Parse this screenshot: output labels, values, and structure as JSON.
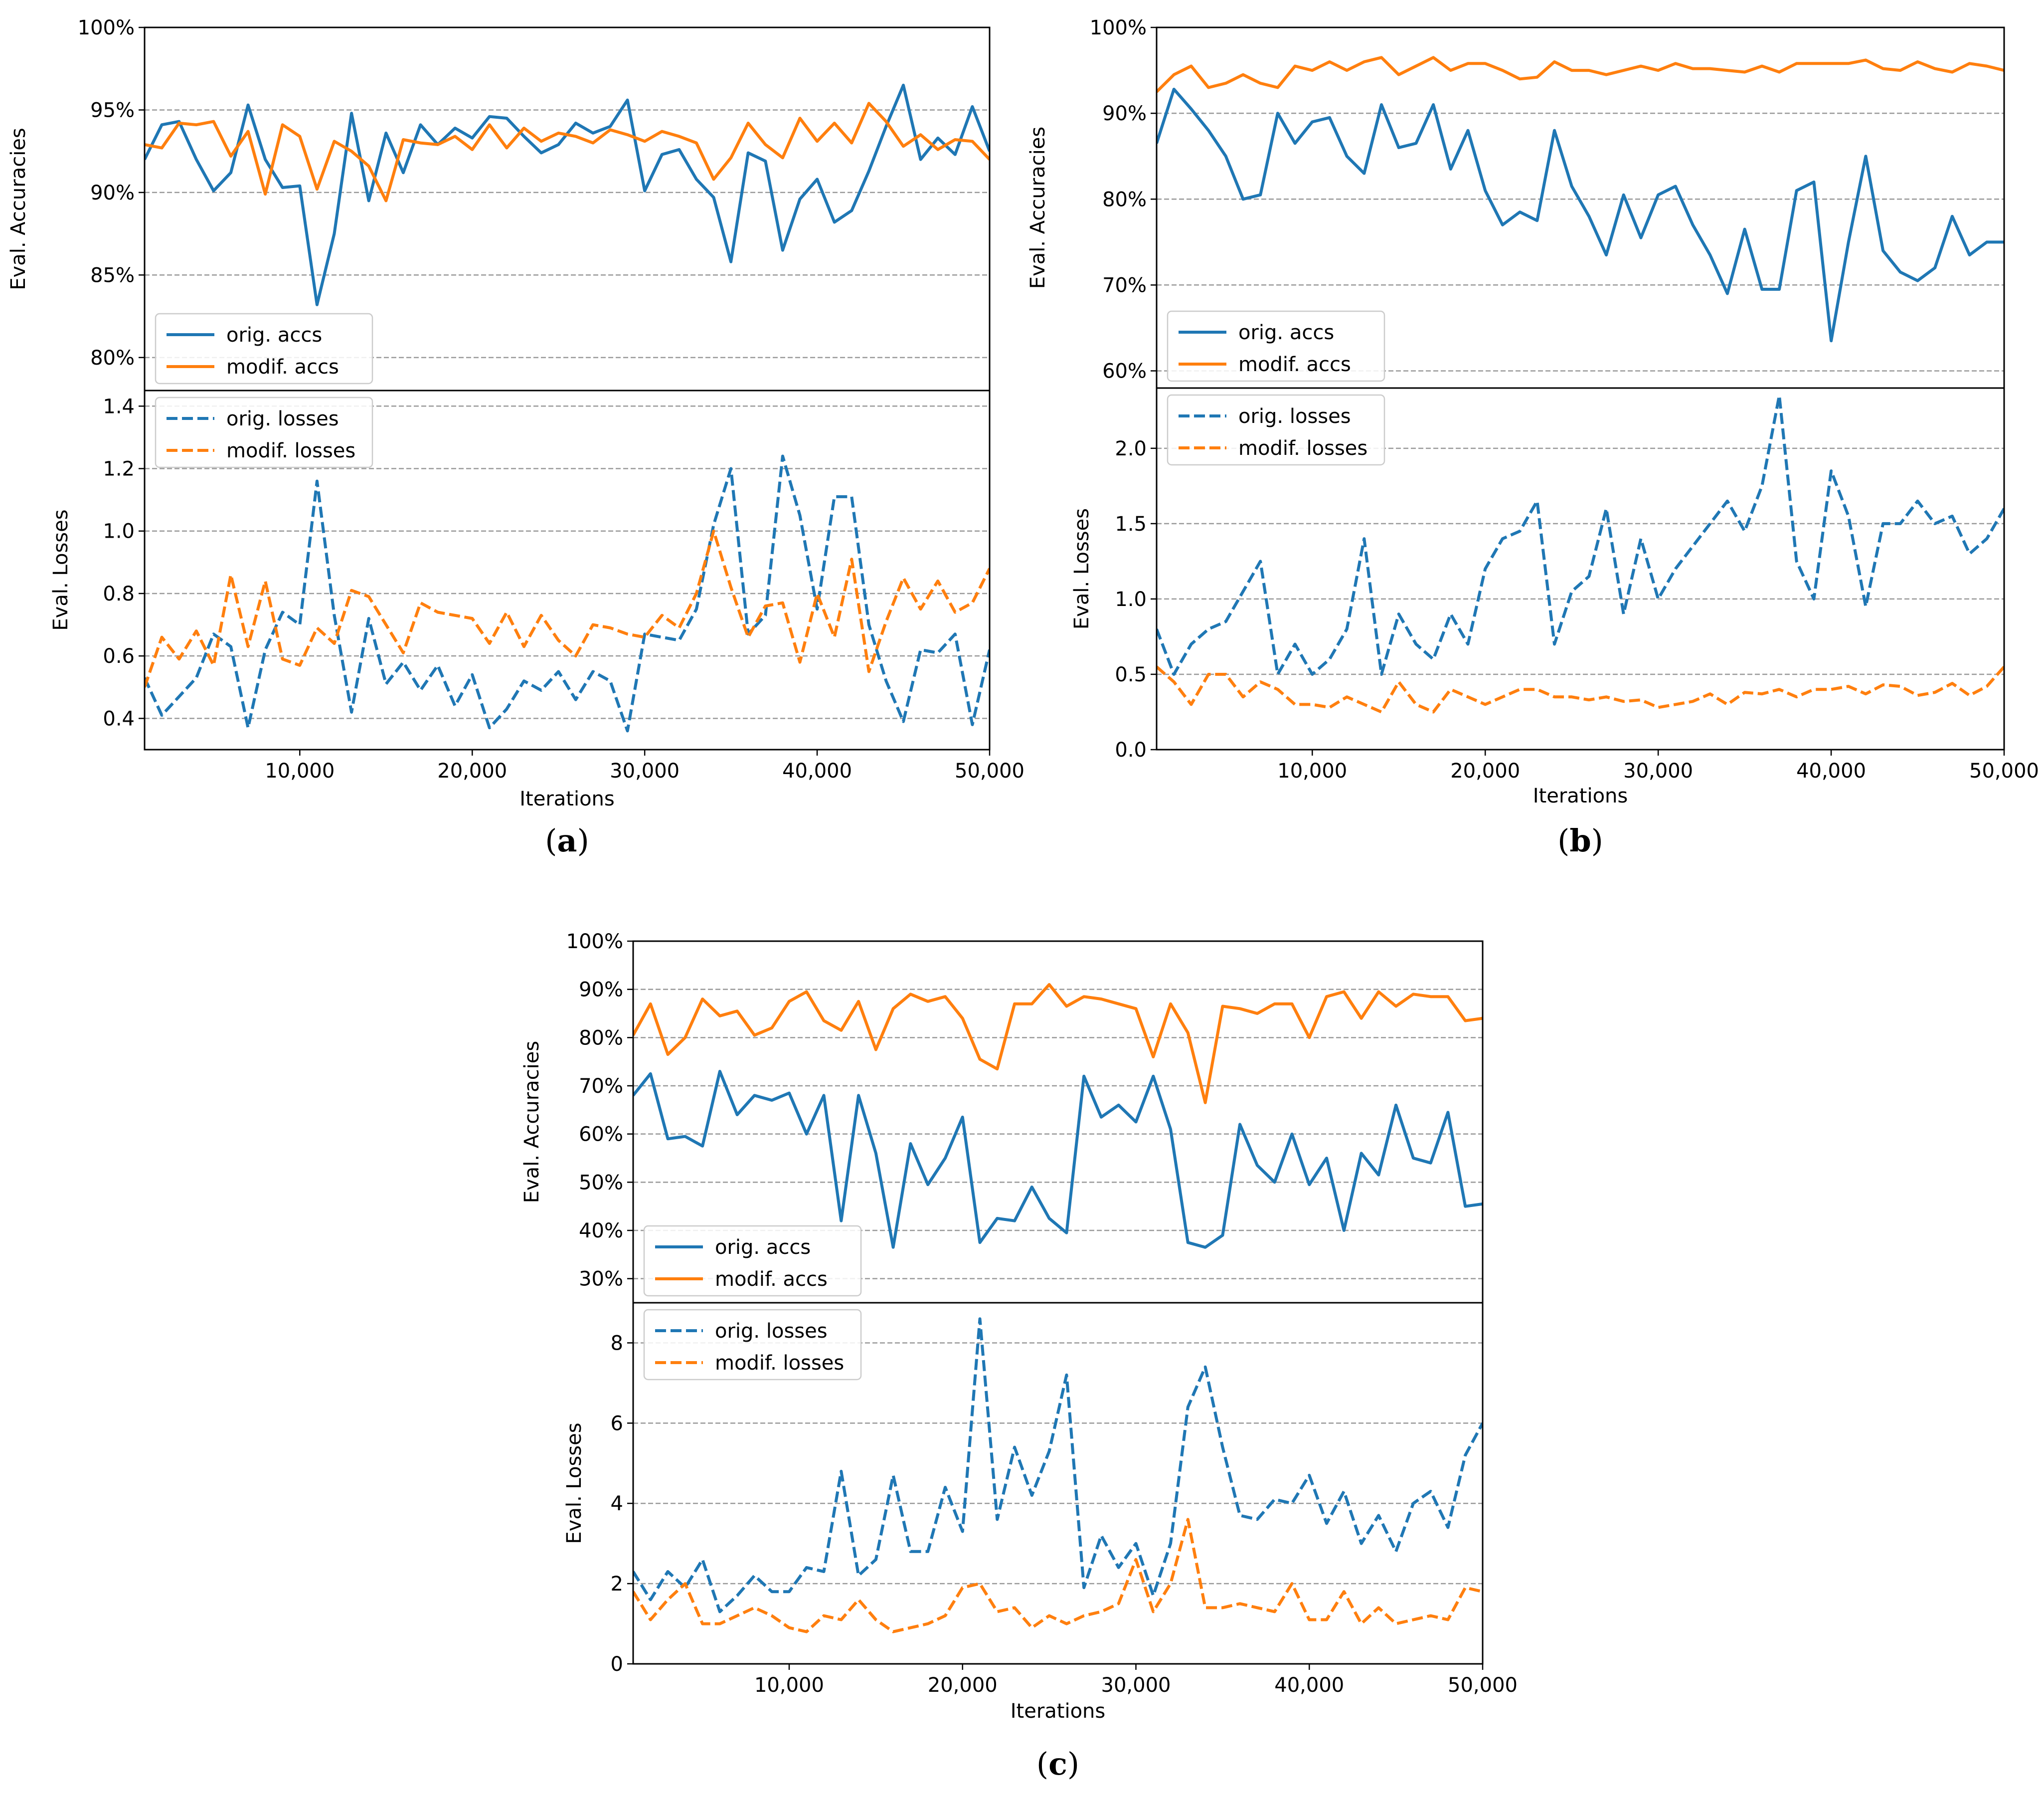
{
  "chart_data": [
    {
      "caption": "(a)",
      "caption_letter": "a",
      "xlabel": "Iterations",
      "xlim": [
        1000,
        50000
      ],
      "xticks": [
        10000,
        20000,
        30000,
        40000,
        50000
      ],
      "xtick_labels": [
        "10,000",
        "20,000",
        "30,000",
        "40,000",
        "50,000"
      ],
      "top": {
        "type": "line",
        "ylabel": "Eval. Accuracies",
        "ylim": [
          78,
          100
        ],
        "yticks": [
          80,
          85,
          90,
          95,
          100
        ],
        "ytick_labels": [
          "80%",
          "85%",
          "90%",
          "95%",
          "100%"
        ],
        "legend_position": "bottom-left",
        "series": [
          {
            "name": "orig. accs",
            "color": "#1f77b4",
            "dash": false,
            "values": [
              92.0,
              94.1,
              94.3,
              92.0,
              90.1,
              91.2,
              95.3,
              92.0,
              90.3,
              90.4,
              83.2,
              87.5,
              94.8,
              89.5,
              93.6,
              91.2,
              94.1,
              92.9,
              93.9,
              93.3,
              94.6,
              94.5,
              93.4,
              92.4,
              92.9,
              94.2,
              93.6,
              94.0,
              95.6,
              90.1,
              92.3,
              92.6,
              90.8,
              89.7,
              85.8,
              92.4,
              91.9,
              86.5,
              89.6,
              90.8,
              88.2,
              88.9,
              91.3,
              94.0,
              96.5,
              92.0,
              93.3,
              92.3,
              95.2,
              92.5
            ]
          },
          {
            "name": "modif. accs",
            "color": "#ff7f0e",
            "dash": false,
            "values": [
              92.9,
              92.7,
              94.2,
              94.1,
              94.3,
              92.2,
              93.7,
              89.9,
              94.1,
              93.4,
              90.2,
              93.1,
              92.5,
              91.6,
              89.5,
              93.2,
              93.0,
              92.9,
              93.4,
              92.6,
              94.1,
              92.7,
              93.9,
              93.1,
              93.6,
              93.4,
              93.0,
              93.8,
              93.5,
              93.1,
              93.7,
              93.4,
              93.0,
              90.8,
              92.1,
              94.2,
              92.9,
              92.1,
              94.5,
              93.1,
              94.2,
              93.0,
              95.4,
              94.3,
              92.8,
              93.5,
              92.6,
              93.2,
              93.1,
              92.0
            ]
          }
        ]
      },
      "bottom": {
        "type": "line",
        "ylabel": "Eval. Losses",
        "ylim": [
          0.3,
          1.45
        ],
        "yticks": [
          0.4,
          0.6,
          0.8,
          1.0,
          1.2,
          1.4
        ],
        "ytick_labels": [
          "0.4",
          "0.6",
          "0.8",
          "1.0",
          "1.2",
          "1.4"
        ],
        "legend_position": "top-left",
        "series": [
          {
            "name": "orig. losses",
            "color": "#1f77b4",
            "dash": true,
            "values": [
              0.53,
              0.41,
              0.47,
              0.53,
              0.67,
              0.63,
              0.37,
              0.62,
              0.74,
              0.7,
              1.16,
              0.73,
              0.42,
              0.72,
              0.51,
              0.58,
              0.49,
              0.57,
              0.44,
              0.54,
              0.37,
              0.43,
              0.52,
              0.49,
              0.55,
              0.46,
              0.55,
              0.52,
              0.36,
              0.67,
              0.66,
              0.65,
              0.75,
              1.02,
              1.2,
              0.67,
              0.73,
              1.24,
              1.05,
              0.75,
              1.11,
              1.11,
              0.7,
              0.52,
              0.39,
              0.62,
              0.61,
              0.67,
              0.38,
              0.62
            ]
          },
          {
            "name": "modif. losses",
            "color": "#ff7f0e",
            "dash": true,
            "values": [
              0.5,
              0.66,
              0.59,
              0.68,
              0.57,
              0.86,
              0.63,
              0.84,
              0.59,
              0.57,
              0.69,
              0.64,
              0.81,
              0.79,
              0.7,
              0.61,
              0.77,
              0.74,
              0.73,
              0.72,
              0.64,
              0.74,
              0.63,
              0.73,
              0.65,
              0.6,
              0.7,
              0.69,
              0.67,
              0.66,
              0.73,
              0.69,
              0.8,
              1.0,
              0.82,
              0.66,
              0.76,
              0.77,
              0.58,
              0.8,
              0.66,
              0.91,
              0.55,
              0.71,
              0.85,
              0.75,
              0.84,
              0.74,
              0.77,
              0.88
            ]
          }
        ]
      }
    },
    {
      "caption": "(b)",
      "caption_letter": "b",
      "xlabel": "Iterations",
      "xlim": [
        1000,
        50000
      ],
      "xticks": [
        10000,
        20000,
        30000,
        40000,
        50000
      ],
      "xtick_labels": [
        "10,000",
        "20,000",
        "30,000",
        "40,000",
        "50,000"
      ],
      "top": {
        "type": "line",
        "ylabel": "Eval. Accuracies",
        "ylim": [
          58,
          100
        ],
        "yticks": [
          60,
          70,
          80,
          90,
          100
        ],
        "ytick_labels": [
          "60%",
          "70%",
          "80%",
          "90%",
          "100%"
        ],
        "legend_position": "bottom-left",
        "series": [
          {
            "name": "orig. accs",
            "color": "#1f77b4",
            "dash": false,
            "values": [
              86.5,
              92.8,
              90.5,
              88.0,
              85.0,
              80.0,
              80.5,
              90.0,
              86.5,
              89.0,
              89.5,
              85.0,
              83.0,
              91.0,
              86.0,
              86.5,
              91.0,
              83.5,
              88.0,
              81.0,
              77.0,
              78.5,
              77.5,
              88.0,
              81.5,
              78.0,
              73.5,
              80.5,
              75.5,
              80.5,
              81.5,
              77.0,
              73.5,
              69.0,
              76.5,
              69.5,
              69.5,
              81.0,
              82.0,
              63.5,
              75.0,
              85.0,
              74.0,
              71.5,
              70.5,
              72.0,
              78.0,
              73.5,
              75.0,
              75.0
            ]
          },
          {
            "name": "modif. accs",
            "color": "#ff7f0e",
            "dash": false,
            "values": [
              92.5,
              94.5,
              95.5,
              93.0,
              93.5,
              94.5,
              93.5,
              93.0,
              95.5,
              95.0,
              96.0,
              95.0,
              96.0,
              96.5,
              94.5,
              95.5,
              96.5,
              95.0,
              95.8,
              95.8,
              95.0,
              94.0,
              94.2,
              96.0,
              95.0,
              95.0,
              94.5,
              95.0,
              95.5,
              95.0,
              95.8,
              95.2,
              95.2,
              95.0,
              94.8,
              95.5,
              94.8,
              95.8,
              95.8,
              95.8,
              95.8,
              96.2,
              95.2,
              95.0,
              96.0,
              95.2,
              94.8,
              95.8,
              95.5,
              95.0
            ]
          }
        ]
      },
      "bottom": {
        "type": "line",
        "ylabel": "Eval. Losses",
        "ylim": [
          0,
          2.4
        ],
        "yticks": [
          0.0,
          0.5,
          1.0,
          1.5,
          2.0
        ],
        "ytick_labels": [
          "0.0",
          "0.5",
          "1.0",
          "1.5",
          "2.0"
        ],
        "legend_position": "top-left",
        "series": [
          {
            "name": "orig. losses",
            "color": "#1f77b4",
            "dash": true,
            "values": [
              0.8,
              0.5,
              0.7,
              0.8,
              0.85,
              1.05,
              1.25,
              0.5,
              0.7,
              0.5,
              0.6,
              0.8,
              1.4,
              0.5,
              0.9,
              0.7,
              0.6,
              0.9,
              0.7,
              1.2,
              1.4,
              1.45,
              1.65,
              0.7,
              1.05,
              1.15,
              1.6,
              0.9,
              1.4,
              1.0,
              1.2,
              1.35,
              1.5,
              1.65,
              1.45,
              1.75,
              2.35,
              1.25,
              1.0,
              1.85,
              1.55,
              0.95,
              1.5,
              1.5,
              1.65,
              1.5,
              1.55,
              1.3,
              1.4,
              1.6
            ]
          },
          {
            "name": "modif. losses",
            "color": "#ff7f0e",
            "dash": true,
            "values": [
              0.55,
              0.45,
              0.3,
              0.5,
              0.5,
              0.35,
              0.45,
              0.4,
              0.3,
              0.3,
              0.28,
              0.35,
              0.3,
              0.25,
              0.45,
              0.3,
              0.25,
              0.4,
              0.35,
              0.3,
              0.35,
              0.4,
              0.4,
              0.35,
              0.35,
              0.33,
              0.35,
              0.32,
              0.33,
              0.28,
              0.3,
              0.32,
              0.37,
              0.3,
              0.38,
              0.37,
              0.4,
              0.35,
              0.4,
              0.4,
              0.42,
              0.37,
              0.43,
              0.42,
              0.36,
              0.38,
              0.44,
              0.36,
              0.42,
              0.55
            ]
          }
        ]
      }
    },
    {
      "caption": "(c)",
      "caption_letter": "c",
      "xlabel": "Iterations",
      "xlim": [
        1000,
        50000
      ],
      "xticks": [
        10000,
        20000,
        30000,
        40000,
        50000
      ],
      "xtick_labels": [
        "10,000",
        "20,000",
        "30,000",
        "40,000",
        "50,000"
      ],
      "top": {
        "type": "line",
        "ylabel": "Eval. Accuracies",
        "ylim": [
          25,
          100
        ],
        "yticks": [
          30,
          40,
          50,
          60,
          70,
          80,
          90,
          100
        ],
        "ytick_labels": [
          "30%",
          "40%",
          "50%",
          "60%",
          "70%",
          "80%",
          "90%",
          "100%"
        ],
        "legend_position": "bottom-left",
        "series": [
          {
            "name": "orig. accs",
            "color": "#1f77b4",
            "dash": false,
            "values": [
              68.0,
              72.5,
              59.0,
              59.5,
              57.5,
              73.0,
              64.0,
              68.0,
              67.0,
              68.5,
              60.0,
              68.0,
              42.0,
              68.0,
              56.0,
              36.5,
              58.0,
              49.5,
              55.0,
              63.5,
              37.5,
              42.5,
              42.0,
              49.0,
              42.5,
              39.5,
              72.0,
              63.5,
              66.0,
              62.5,
              72.0,
              61.0,
              37.5,
              36.5,
              39.0,
              62.0,
              53.5,
              50.0,
              60.0,
              49.5,
              55.0,
              40.0,
              56.0,
              51.5,
              66.0,
              55.0,
              54.0,
              64.5,
              45.0,
              45.5
            ]
          },
          {
            "name": "modif. accs",
            "color": "#ff7f0e",
            "dash": false,
            "values": [
              80.5,
              87.0,
              76.5,
              80.0,
              88.0,
              84.5,
              85.5,
              80.5,
              82.0,
              87.5,
              89.5,
              83.5,
              81.5,
              87.5,
              77.5,
              86.0,
              89.0,
              87.5,
              88.5,
              84.0,
              75.5,
              73.5,
              87.0,
              87.0,
              91.0,
              86.5,
              88.5,
              88.0,
              87.0,
              86.0,
              76.0,
              87.0,
              81.0,
              66.5,
              86.5,
              86.0,
              85.0,
              87.0,
              87.0,
              80.0,
              88.5,
              89.5,
              84.0,
              89.5,
              86.5,
              89.0,
              88.5,
              88.5,
              83.5,
              84.0
            ]
          }
        ]
      },
      "bottom": {
        "type": "line",
        "ylabel": "Eval. Losses",
        "ylim": [
          0,
          9.0
        ],
        "yticks": [
          0,
          2,
          4,
          6,
          8
        ],
        "ytick_labels": [
          "0",
          "2",
          "4",
          "6",
          "8"
        ],
        "legend_position": "top-left",
        "series": [
          {
            "name": "orig. losses",
            "color": "#1f77b4",
            "dash": true,
            "values": [
              2.3,
              1.6,
              2.3,
              1.9,
              2.6,
              1.3,
              1.7,
              2.2,
              1.8,
              1.8,
              2.4,
              2.3,
              4.8,
              2.2,
              2.6,
              4.7,
              2.8,
              2.8,
              4.4,
              3.3,
              8.6,
              3.6,
              5.4,
              4.2,
              5.3,
              7.2,
              1.9,
              3.2,
              2.4,
              3.0,
              1.7,
              3.0,
              6.4,
              7.4,
              5.4,
              3.7,
              3.6,
              4.1,
              4.0,
              4.7,
              3.5,
              4.3,
              3.0,
              3.7,
              2.8,
              4.0,
              4.3,
              3.4,
              5.2,
              6.0
            ]
          },
          {
            "name": "modif. losses",
            "color": "#ff7f0e",
            "dash": true,
            "values": [
              1.8,
              1.1,
              1.6,
              2.0,
              1.0,
              1.0,
              1.2,
              1.4,
              1.2,
              0.9,
              0.8,
              1.2,
              1.1,
              1.6,
              1.1,
              0.8,
              0.9,
              1.0,
              1.2,
              1.9,
              2.0,
              1.3,
              1.4,
              0.9,
              1.2,
              1.0,
              1.2,
              1.3,
              1.5,
              2.6,
              1.3,
              2.0,
              3.6,
              1.4,
              1.4,
              1.5,
              1.4,
              1.3,
              2.0,
              1.1,
              1.1,
              1.8,
              1.0,
              1.4,
              1.0,
              1.1,
              1.2,
              1.1,
              1.9,
              1.8
            ]
          }
        ]
      }
    }
  ]
}
